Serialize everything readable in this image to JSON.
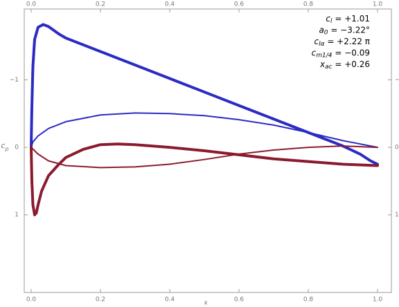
{
  "chart_data": {
    "type": "line",
    "xlabel": "x",
    "ylabel": "c",
    "ylabel_sub": "p",
    "xlim": [
      -0.02,
      1.04
    ],
    "ylim": [
      2.15,
      -2.05
    ],
    "xticks": [
      {
        "value": 0,
        "label": "0.0"
      },
      {
        "value": 0.2,
        "label": "0.2"
      },
      {
        "value": 0.4,
        "label": "0.4"
      },
      {
        "value": 0.6,
        "label": "0.6"
      },
      {
        "value": 0.8,
        "label": "0.8"
      },
      {
        "value": 1,
        "label": "1.0"
      }
    ],
    "yticks": [
      {
        "value": -1,
        "label": "−1"
      },
      0,
      1
    ],
    "annotations": [
      {
        "symbol": "c",
        "sub": "l",
        "text": " = +1.01"
      },
      {
        "symbol": "a",
        "sub": "0",
        "text": " = −3.22°"
      },
      {
        "symbol": "c",
        "sub": "lα",
        "text": " = +2.22 π"
      },
      {
        "symbol": "c",
        "sub": "m1/4",
        "text": " = −0.09"
      },
      {
        "symbol": "x",
        "sub": "ac",
        "text": " = +0.26"
      }
    ],
    "series": [
      {
        "color": "#2b2bc4",
        "width": 4,
        "x": [
          0,
          0.002,
          0.005,
          0.01,
          0.02,
          0.035,
          0.05,
          0.08,
          0.1,
          0.2,
          0.3,
          0.4,
          0.5,
          0.6,
          0.7,
          0.8,
          0.9,
          0.95,
          0.98,
          1.0
        ],
        "values": [
          0,
          -0.6,
          -1.2,
          -1.6,
          -1.78,
          -1.82,
          -1.79,
          -1.68,
          -1.62,
          -1.42,
          -1.22,
          -1.02,
          -0.82,
          -0.62,
          -0.42,
          -0.22,
          -0.02,
          0.1,
          0.2,
          0.25
        ]
      },
      {
        "color": "#2b2bc4",
        "width": 2,
        "x": [
          1.0,
          0.9,
          0.8,
          0.7,
          0.6,
          0.5,
          0.4,
          0.3,
          0.2,
          0.1,
          0.05,
          0.02,
          0.005,
          0
        ],
        "values": [
          0,
          -0.1,
          -0.22,
          -0.33,
          -0.41,
          -0.47,
          -0.5,
          -0.51,
          -0.48,
          -0.38,
          -0.28,
          -0.17,
          -0.08,
          0
        ]
      },
      {
        "color": "#8b1a2e",
        "width": 4,
        "x": [
          0,
          0.002,
          0.005,
          0.01,
          0.015,
          0.02,
          0.03,
          0.05,
          0.08,
          0.1,
          0.15,
          0.2,
          0.25,
          0.3,
          0.4,
          0.5,
          0.6,
          0.7,
          0.8,
          0.9,
          1.0
        ],
        "values": [
          0,
          0.5,
          0.85,
          1.0,
          0.97,
          0.85,
          0.65,
          0.42,
          0.25,
          0.15,
          0.03,
          -0.04,
          -0.05,
          -0.04,
          0,
          0.05,
          0.11,
          0.17,
          0.21,
          0.25,
          0.27
        ]
      },
      {
        "color": "#8b1a2e",
        "width": 2,
        "x": [
          0,
          0.02,
          0.05,
          0.1,
          0.2,
          0.3,
          0.4,
          0.5,
          0.6,
          0.7,
          0.8,
          0.9,
          0.95,
          1.0
        ],
        "values": [
          0,
          0.1,
          0.2,
          0.27,
          0.3,
          0.29,
          0.25,
          0.18,
          0.1,
          0.04,
          0,
          -0.02,
          -0.01,
          0
        ]
      }
    ]
  }
}
